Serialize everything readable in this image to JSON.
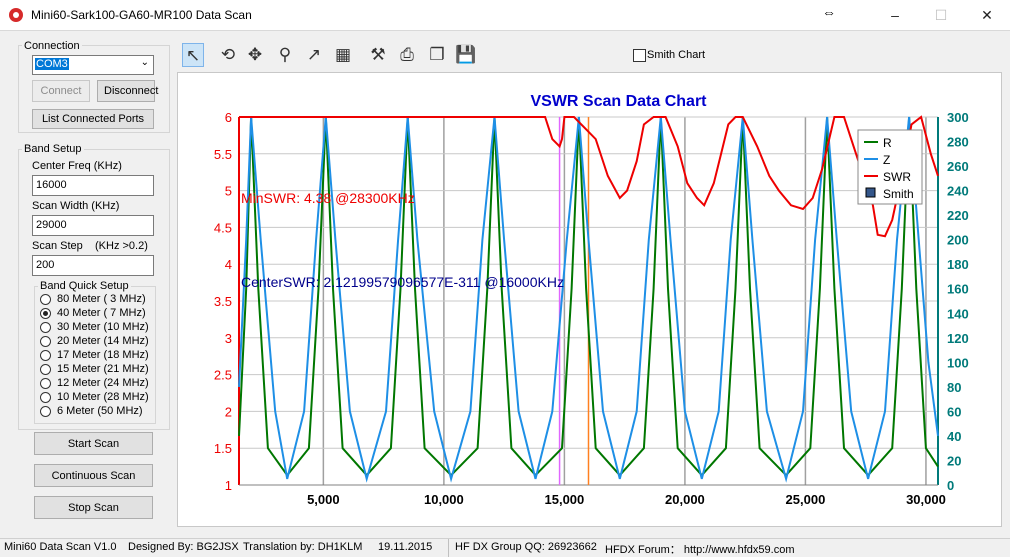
{
  "window": {
    "title": "Mini60-Sark100-GA60-MR100 Data Scan"
  },
  "connection": {
    "group_label": "Connection",
    "port_value": "COM3",
    "connect_label": "Connect",
    "disconnect_label": "Disconnect",
    "list_ports_label": "List Connected Ports"
  },
  "band_setup": {
    "group_label": "Band Setup",
    "center_freq_label": "Center Freq  (KHz)",
    "center_freq_value": "16000",
    "scan_width_label": "Scan Width   (KHz)",
    "scan_width_value": "29000",
    "scan_step_label": "Scan Step",
    "scan_step_hint": "(KHz >0.2)",
    "scan_step_value": "200",
    "quick_setup_label": "Band Quick Setup",
    "bands": [
      {
        "label": "80 Meter (  3 MHz)",
        "checked": false
      },
      {
        "label": "40 Meter (  7 MHz)",
        "checked": true
      },
      {
        "label": "30 Meter (10 MHz)",
        "checked": false
      },
      {
        "label": "20 Meter (14 MHz)",
        "checked": false
      },
      {
        "label": "17 Meter (18 MHz)",
        "checked": false
      },
      {
        "label": "15 Meter (21 MHz)",
        "checked": false
      },
      {
        "label": "12 Meter (24 MHz)",
        "checked": false
      },
      {
        "label": "10 Meter (28 MHz)",
        "checked": false
      },
      {
        "label": "  6 Meter  (50 MHz)",
        "checked": false
      }
    ]
  },
  "actions": {
    "start_scan": "Start Scan",
    "continuous_scan": "Continuous Scan",
    "stop_scan": "Stop Scan"
  },
  "toolbar": {
    "tools": [
      "pointer-icon",
      "rotate-icon",
      "pan-icon",
      "zoom-icon",
      "export-icon",
      "data-icon",
      "settings-icon",
      "print-icon",
      "copy-icon",
      "save-icon"
    ],
    "smith_chart_label": "Smith Chart",
    "smith_chart_checked": false
  },
  "status": {
    "version": "Mini60 Data Scan V1.0",
    "designer": "Designed By: BG2JSX",
    "translation": "Translation by: DH1KLM",
    "date": "19.11.2015",
    "qq": "HF DX Group QQ: 26923662",
    "forum": "HFDX Forum：  http://www.hfdx59.com"
  },
  "colors": {
    "r": "#007700",
    "z": "#1e8fe6",
    "swr": "#ee0000",
    "teal_axis": "#007a7a",
    "title": "#0000cc",
    "marker_violet": "#e066ff",
    "marker_orange": "#ff8020"
  },
  "chart_data": {
    "type": "line",
    "title": "VSWR Scan Data Chart",
    "xlim": [
      1500,
      30500
    ],
    "x_ticks": [
      "5,000",
      "10,000",
      "15,000",
      "20,000",
      "25,000",
      "30,000"
    ],
    "x_tick_values": [
      5000,
      10000,
      15000,
      20000,
      25000,
      30000
    ],
    "ylim_left": [
      1,
      6
    ],
    "y_left_ticks": [
      "1",
      "1.5",
      "2",
      "2.5",
      "3",
      "3.5",
      "4",
      "4.5",
      "5",
      "5.5",
      "6"
    ],
    "ylim_right": [
      0,
      300
    ],
    "y_right_ticks": [
      "0",
      "20",
      "40",
      "60",
      "80",
      "100",
      "120",
      "140",
      "160",
      "180",
      "200",
      "220",
      "240",
      "260",
      "280",
      "300"
    ],
    "legend": [
      "R",
      "Z",
      "SWR",
      "Smith"
    ],
    "legend_position": "top-right",
    "annotations": {
      "min_swr": "MinSWR: 4.38 @28300KHz",
      "center_swr": "CenterSWR: 2.12199579096577E-311 @16000KHz"
    },
    "markers_x": [
      14800,
      16000
    ],
    "resonance_x": [
      2000,
      5100,
      8500,
      12100,
      15600,
      19000,
      22400,
      25900,
      29300
    ],
    "minima_x": [
      3500,
      6800,
      10300,
      13800,
      17300,
      20700,
      24200,
      27600,
      30500
    ],
    "series": [
      {
        "name": "R",
        "axis": "right",
        "x": [
          1500,
          1800,
          2000,
          2300,
          2700,
          3500,
          4400,
          4800,
          5100,
          5400,
          5800,
          6800,
          7800,
          8200,
          8500,
          8800,
          9200,
          10300,
          11400,
          11800,
          12100,
          12400,
          12800,
          13800,
          14900,
          15300,
          15600,
          15900,
          16300,
          17300,
          18300,
          18700,
          19000,
          19300,
          19700,
          20700,
          21700,
          22100,
          22400,
          22700,
          23100,
          24200,
          25200,
          25600,
          25900,
          26200,
          26600,
          27600,
          28600,
          29000,
          29300,
          29600,
          30000,
          30500
        ],
        "y": [
          40,
          160,
          300,
          160,
          30,
          8,
          30,
          160,
          300,
          160,
          30,
          8,
          30,
          160,
          300,
          160,
          30,
          8,
          30,
          160,
          300,
          160,
          30,
          8,
          30,
          160,
          300,
          160,
          30,
          8,
          30,
          160,
          300,
          160,
          30,
          8,
          30,
          160,
          300,
          160,
          30,
          8,
          30,
          160,
          300,
          160,
          30,
          8,
          30,
          160,
          300,
          160,
          30,
          15
        ]
      },
      {
        "name": "Z",
        "axis": "right",
        "x": [
          1500,
          1800,
          2000,
          2400,
          3000,
          3500,
          4200,
          4700,
          5100,
          5500,
          6100,
          6800,
          7600,
          8100,
          8500,
          8900,
          9600,
          10300,
          11100,
          11600,
          12100,
          12500,
          13100,
          13800,
          14500,
          15100,
          15600,
          16000,
          16600,
          17300,
          18000,
          18500,
          19000,
          19400,
          20000,
          20700,
          21400,
          21900,
          22400,
          22800,
          23400,
          24200,
          24900,
          25400,
          25900,
          26300,
          26900,
          27600,
          28300,
          28800,
          29300,
          29700,
          30100,
          30500
        ],
        "y": [
          80,
          200,
          300,
          200,
          60,
          5,
          60,
          200,
          300,
          200,
          60,
          5,
          60,
          200,
          300,
          200,
          60,
          5,
          60,
          200,
          300,
          200,
          60,
          5,
          60,
          200,
          300,
          200,
          60,
          5,
          60,
          200,
          300,
          200,
          60,
          5,
          60,
          200,
          300,
          200,
          60,
          5,
          60,
          200,
          300,
          200,
          60,
          5,
          60,
          200,
          300,
          200,
          100,
          40
        ]
      },
      {
        "name": "SWR",
        "axis": "left",
        "x": [
          1500,
          14200,
          14500,
          14800,
          14900,
          15000,
          15400,
          16300,
          16800,
          17300,
          17600,
          18000,
          18300,
          18700,
          19200,
          19700,
          20100,
          20500,
          20800,
          21200,
          21500,
          21800,
          22100,
          22400,
          23000,
          23500,
          23900,
          24400,
          24900,
          25300,
          25700,
          26200,
          26600,
          27000,
          27400,
          27800,
          28000,
          28300,
          28600,
          29000,
          29400,
          29800,
          30200,
          30500
        ],
        "y": [
          6,
          6,
          5.7,
          5.6,
          5.7,
          6,
          6,
          5.7,
          5.2,
          4.9,
          5,
          5.4,
          5.9,
          6,
          6,
          5.6,
          5.1,
          4.9,
          4.8,
          5.1,
          5.5,
          5.9,
          6,
          6,
          5.6,
          5.2,
          5,
          4.8,
          4.75,
          4.9,
          5.3,
          6,
          6,
          5.6,
          5.2,
          4.8,
          4.4,
          4.38,
          4.6,
          5.2,
          5.9,
          6,
          5.5,
          5.2
        ]
      }
    ]
  }
}
